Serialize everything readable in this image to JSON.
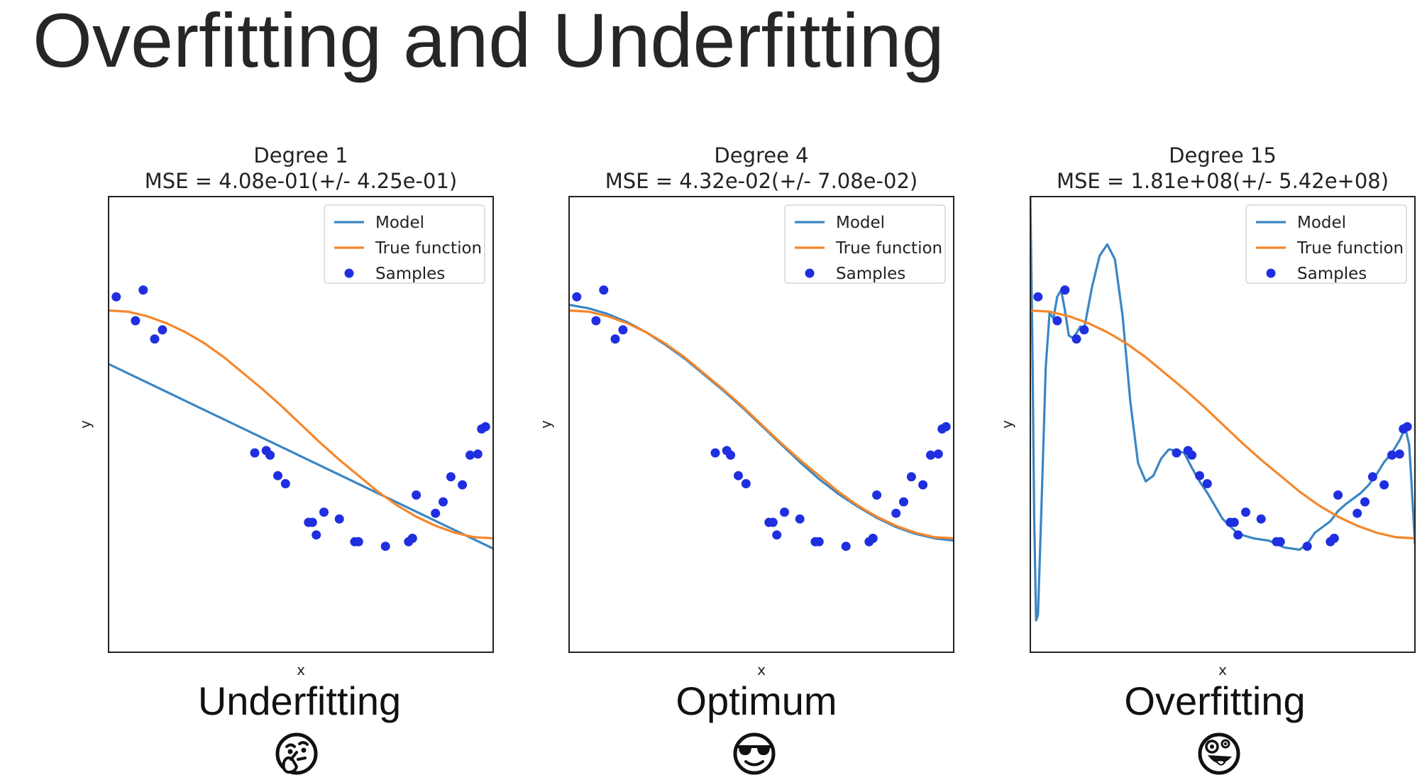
{
  "slide": {
    "title": "Overfitting and Underfitting"
  },
  "panels": [
    {
      "caption": "Underfitting",
      "emoji": "thinking-face-icon"
    },
    {
      "caption": "Optimum",
      "emoji": "sunglasses-face-icon"
    },
    {
      "caption": "Overfitting",
      "emoji": "zany-face-icon"
    }
  ],
  "colors": {
    "model": "#3b86c4",
    "true_function": "#f5862a",
    "samples": "#1f2fe0",
    "axes": "#222222",
    "legend_border": "#d6d6d6"
  },
  "chart_data": [
    {
      "type": "line",
      "title": "Degree 1",
      "subtitle": "MSE = 4.08e-01(+/- 4.25e-01)",
      "xlabel": "x",
      "ylabel": "y",
      "xlim": [
        0,
        1
      ],
      "ylim": [
        -2,
        2
      ],
      "legend": {
        "position": "top-right",
        "entries": [
          "Model",
          "True function",
          "Samples"
        ]
      },
      "series": [
        {
          "name": "Model",
          "x": [
            0,
            0.5,
            1
          ],
          "y": [
            0.53,
            -0.28,
            -1.09
          ]
        },
        {
          "name": "True function",
          "x": [
            0,
            0.05,
            0.1,
            0.15,
            0.2,
            0.25,
            0.3,
            0.35,
            0.4,
            0.45,
            0.5,
            0.55,
            0.6,
            0.65,
            0.7,
            0.75,
            0.8,
            0.85,
            0.9,
            0.95,
            1.0
          ],
          "y": [
            1.0,
            0.99,
            0.95,
            0.89,
            0.81,
            0.71,
            0.59,
            0.45,
            0.31,
            0.16,
            0.0,
            -0.16,
            -0.31,
            -0.45,
            -0.59,
            -0.71,
            -0.81,
            -0.89,
            -0.95,
            -0.99,
            -1.0
          ]
        }
      ],
      "samples": {
        "x": [
          0.02,
          0.07,
          0.09,
          0.12,
          0.14,
          0.38,
          0.41,
          0.42,
          0.44,
          0.46,
          0.52,
          0.53,
          0.54,
          0.56,
          0.6,
          0.64,
          0.65,
          0.72,
          0.78,
          0.79,
          0.79,
          0.8,
          0.85,
          0.87,
          0.89,
          0.92,
          0.94,
          0.96,
          0.97,
          0.98
        ],
        "y": [
          1.12,
          0.91,
          1.18,
          0.75,
          0.83,
          -0.25,
          -0.23,
          -0.27,
          -0.45,
          -0.52,
          -0.86,
          -0.86,
          -0.97,
          -0.77,
          -0.83,
          -1.03,
          -1.03,
          -1.07,
          -1.03,
          -1.0,
          -1.0,
          -0.62,
          -0.78,
          -0.68,
          -0.46,
          -0.53,
          -0.27,
          -0.26,
          -0.04,
          -0.02
        ]
      }
    },
    {
      "type": "line",
      "title": "Degree 4",
      "subtitle": "MSE = 4.32e-02(+/- 7.08e-02)",
      "xlabel": "x",
      "ylabel": "y",
      "xlim": [
        0,
        1
      ],
      "ylim": [
        -2,
        2
      ],
      "legend": {
        "position": "top-right",
        "entries": [
          "Model",
          "True function",
          "Samples"
        ]
      },
      "series": [
        {
          "name": "Model",
          "x": [
            0,
            0.05,
            0.1,
            0.15,
            0.2,
            0.25,
            0.3,
            0.35,
            0.4,
            0.45,
            0.5,
            0.55,
            0.6,
            0.65,
            0.7,
            0.75,
            0.8,
            0.85,
            0.9,
            0.95,
            1.0
          ],
          "y": [
            1.05,
            1.02,
            0.97,
            0.9,
            0.81,
            0.7,
            0.58,
            0.44,
            0.3,
            0.15,
            -0.01,
            -0.17,
            -0.33,
            -0.48,
            -0.61,
            -0.72,
            -0.82,
            -0.9,
            -0.96,
            -1.0,
            -1.02
          ]
        },
        {
          "name": "True function",
          "x": [
            0,
            0.05,
            0.1,
            0.15,
            0.2,
            0.25,
            0.3,
            0.35,
            0.4,
            0.45,
            0.5,
            0.55,
            0.6,
            0.65,
            0.7,
            0.75,
            0.8,
            0.85,
            0.9,
            0.95,
            1.0
          ],
          "y": [
            1.0,
            0.99,
            0.95,
            0.89,
            0.81,
            0.71,
            0.59,
            0.45,
            0.31,
            0.16,
            0.0,
            -0.16,
            -0.31,
            -0.45,
            -0.59,
            -0.71,
            -0.81,
            -0.89,
            -0.95,
            -0.99,
            -1.0
          ]
        }
      ],
      "samples": {
        "x": [
          0.02,
          0.07,
          0.09,
          0.12,
          0.14,
          0.38,
          0.41,
          0.42,
          0.44,
          0.46,
          0.52,
          0.53,
          0.54,
          0.56,
          0.6,
          0.64,
          0.65,
          0.72,
          0.78,
          0.79,
          0.79,
          0.8,
          0.85,
          0.87,
          0.89,
          0.92,
          0.94,
          0.96,
          0.97,
          0.98
        ],
        "y": [
          1.12,
          0.91,
          1.18,
          0.75,
          0.83,
          -0.25,
          -0.23,
          -0.27,
          -0.45,
          -0.52,
          -0.86,
          -0.86,
          -0.97,
          -0.77,
          -0.83,
          -1.03,
          -1.03,
          -1.07,
          -1.03,
          -1.0,
          -1.0,
          -0.62,
          -0.78,
          -0.68,
          -0.46,
          -0.53,
          -0.27,
          -0.26,
          -0.04,
          -0.02
        ]
      }
    },
    {
      "type": "line",
      "title": "Degree 15",
      "subtitle": "MSE = 1.81e+08(+/- 5.42e+08)",
      "xlabel": "x",
      "ylabel": "y",
      "xlim": [
        0,
        1
      ],
      "ylim": [
        -2,
        2
      ],
      "legend": {
        "position": "top-right",
        "entries": [
          "Model",
          "True function",
          "Samples"
        ]
      },
      "series": [
        {
          "name": "Model",
          "x": [
            0.0,
            0.005,
            0.01,
            0.015,
            0.02,
            0.03,
            0.04,
            0.05,
            0.06,
            0.07,
            0.08,
            0.09,
            0.1,
            0.11,
            0.12,
            0.13,
            0.14,
            0.16,
            0.18,
            0.2,
            0.22,
            0.24,
            0.26,
            0.28,
            0.3,
            0.32,
            0.34,
            0.36,
            0.38,
            0.4,
            0.42,
            0.44,
            0.46,
            0.5,
            0.54,
            0.58,
            0.62,
            0.66,
            0.7,
            0.72,
            0.74,
            0.76,
            0.78,
            0.8,
            0.82,
            0.84,
            0.86,
            0.88,
            0.9,
            0.92,
            0.94,
            0.96,
            0.975,
            0.985,
            0.99,
            0.995,
            1.0
          ],
          "y": [
            2.0,
            0.8,
            -0.8,
            -1.72,
            -1.67,
            -0.6,
            0.5,
            0.98,
            0.93,
            1.12,
            1.18,
            1.0,
            0.78,
            0.76,
            0.8,
            0.86,
            0.84,
            1.2,
            1.48,
            1.58,
            1.45,
            0.95,
            0.2,
            -0.34,
            -0.5,
            -0.45,
            -0.3,
            -0.22,
            -0.23,
            -0.25,
            -0.38,
            -0.5,
            -0.6,
            -0.83,
            -0.96,
            -1.0,
            -1.02,
            -1.08,
            -1.1,
            -1.05,
            -0.95,
            -0.9,
            -0.85,
            -0.76,
            -0.7,
            -0.65,
            -0.6,
            -0.53,
            -0.44,
            -0.33,
            -0.25,
            -0.14,
            -0.03,
            -0.18,
            -0.45,
            -0.75,
            -1.05
          ]
        },
        {
          "name": "True function",
          "x": [
            0,
            0.05,
            0.1,
            0.15,
            0.2,
            0.25,
            0.3,
            0.35,
            0.4,
            0.45,
            0.5,
            0.55,
            0.6,
            0.65,
            0.7,
            0.75,
            0.8,
            0.85,
            0.9,
            0.95,
            1.0
          ],
          "y": [
            1.0,
            0.99,
            0.95,
            0.89,
            0.81,
            0.71,
            0.59,
            0.45,
            0.31,
            0.16,
            0.0,
            -0.16,
            -0.31,
            -0.45,
            -0.59,
            -0.71,
            -0.81,
            -0.89,
            -0.95,
            -0.99,
            -1.0
          ]
        }
      ],
      "samples": {
        "x": [
          0.02,
          0.07,
          0.09,
          0.12,
          0.14,
          0.38,
          0.41,
          0.42,
          0.44,
          0.46,
          0.52,
          0.53,
          0.54,
          0.56,
          0.6,
          0.64,
          0.65,
          0.72,
          0.78,
          0.79,
          0.79,
          0.8,
          0.85,
          0.87,
          0.89,
          0.92,
          0.94,
          0.96,
          0.97,
          0.98
        ],
        "y": [
          1.12,
          0.91,
          1.18,
          0.75,
          0.83,
          -0.25,
          -0.23,
          -0.27,
          -0.45,
          -0.52,
          -0.86,
          -0.86,
          -0.97,
          -0.77,
          -0.83,
          -1.03,
          -1.03,
          -1.07,
          -1.03,
          -1.0,
          -1.0,
          -0.62,
          -0.78,
          -0.68,
          -0.46,
          -0.53,
          -0.27,
          -0.26,
          -0.04,
          -0.02
        ]
      }
    }
  ]
}
